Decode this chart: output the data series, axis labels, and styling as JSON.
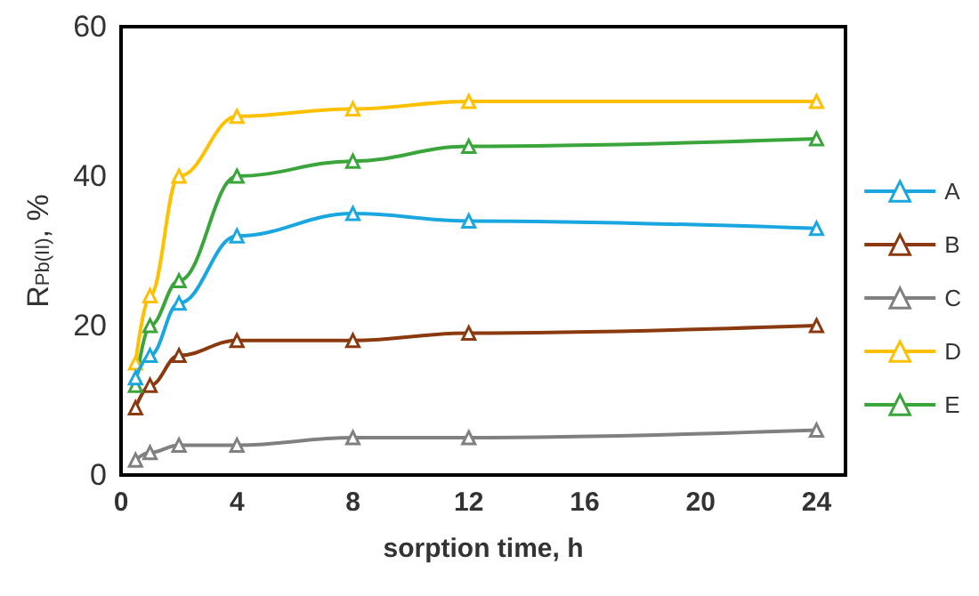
{
  "chart_data": {
    "type": "line",
    "xlabel": "sorption time, h",
    "ylabel": "R$_{Pb(II)}$, %",
    "x": [
      0.5,
      1,
      2,
      4,
      8,
      12,
      24
    ],
    "series": [
      {
        "name": "A",
        "color": "#1aa7e0",
        "values": [
          13,
          16,
          23,
          32,
          35,
          34,
          33
        ]
      },
      {
        "name": "B",
        "color": "#8b3a10",
        "values": [
          9,
          12,
          16,
          18,
          18,
          19,
          20
        ]
      },
      {
        "name": "C",
        "color": "#808080",
        "values": [
          2,
          3,
          4,
          4,
          5,
          5,
          6
        ]
      },
      {
        "name": "D",
        "color": "#ffc000",
        "values": [
          15,
          24,
          40,
          48,
          49,
          50,
          50
        ]
      },
      {
        "name": "E",
        "color": "#3aa53a",
        "values": [
          12,
          20,
          26,
          40,
          42,
          44,
          45
        ]
      }
    ],
    "xlim": [
      0,
      25
    ],
    "xticks": [
      0,
      4,
      8,
      12,
      16,
      20,
      24
    ],
    "ylim": [
      0,
      60
    ],
    "yticks": [
      0,
      20,
      40,
      60
    ],
    "grid": false,
    "legend": "right",
    "marker": "triangle",
    "line_style": "solid"
  }
}
